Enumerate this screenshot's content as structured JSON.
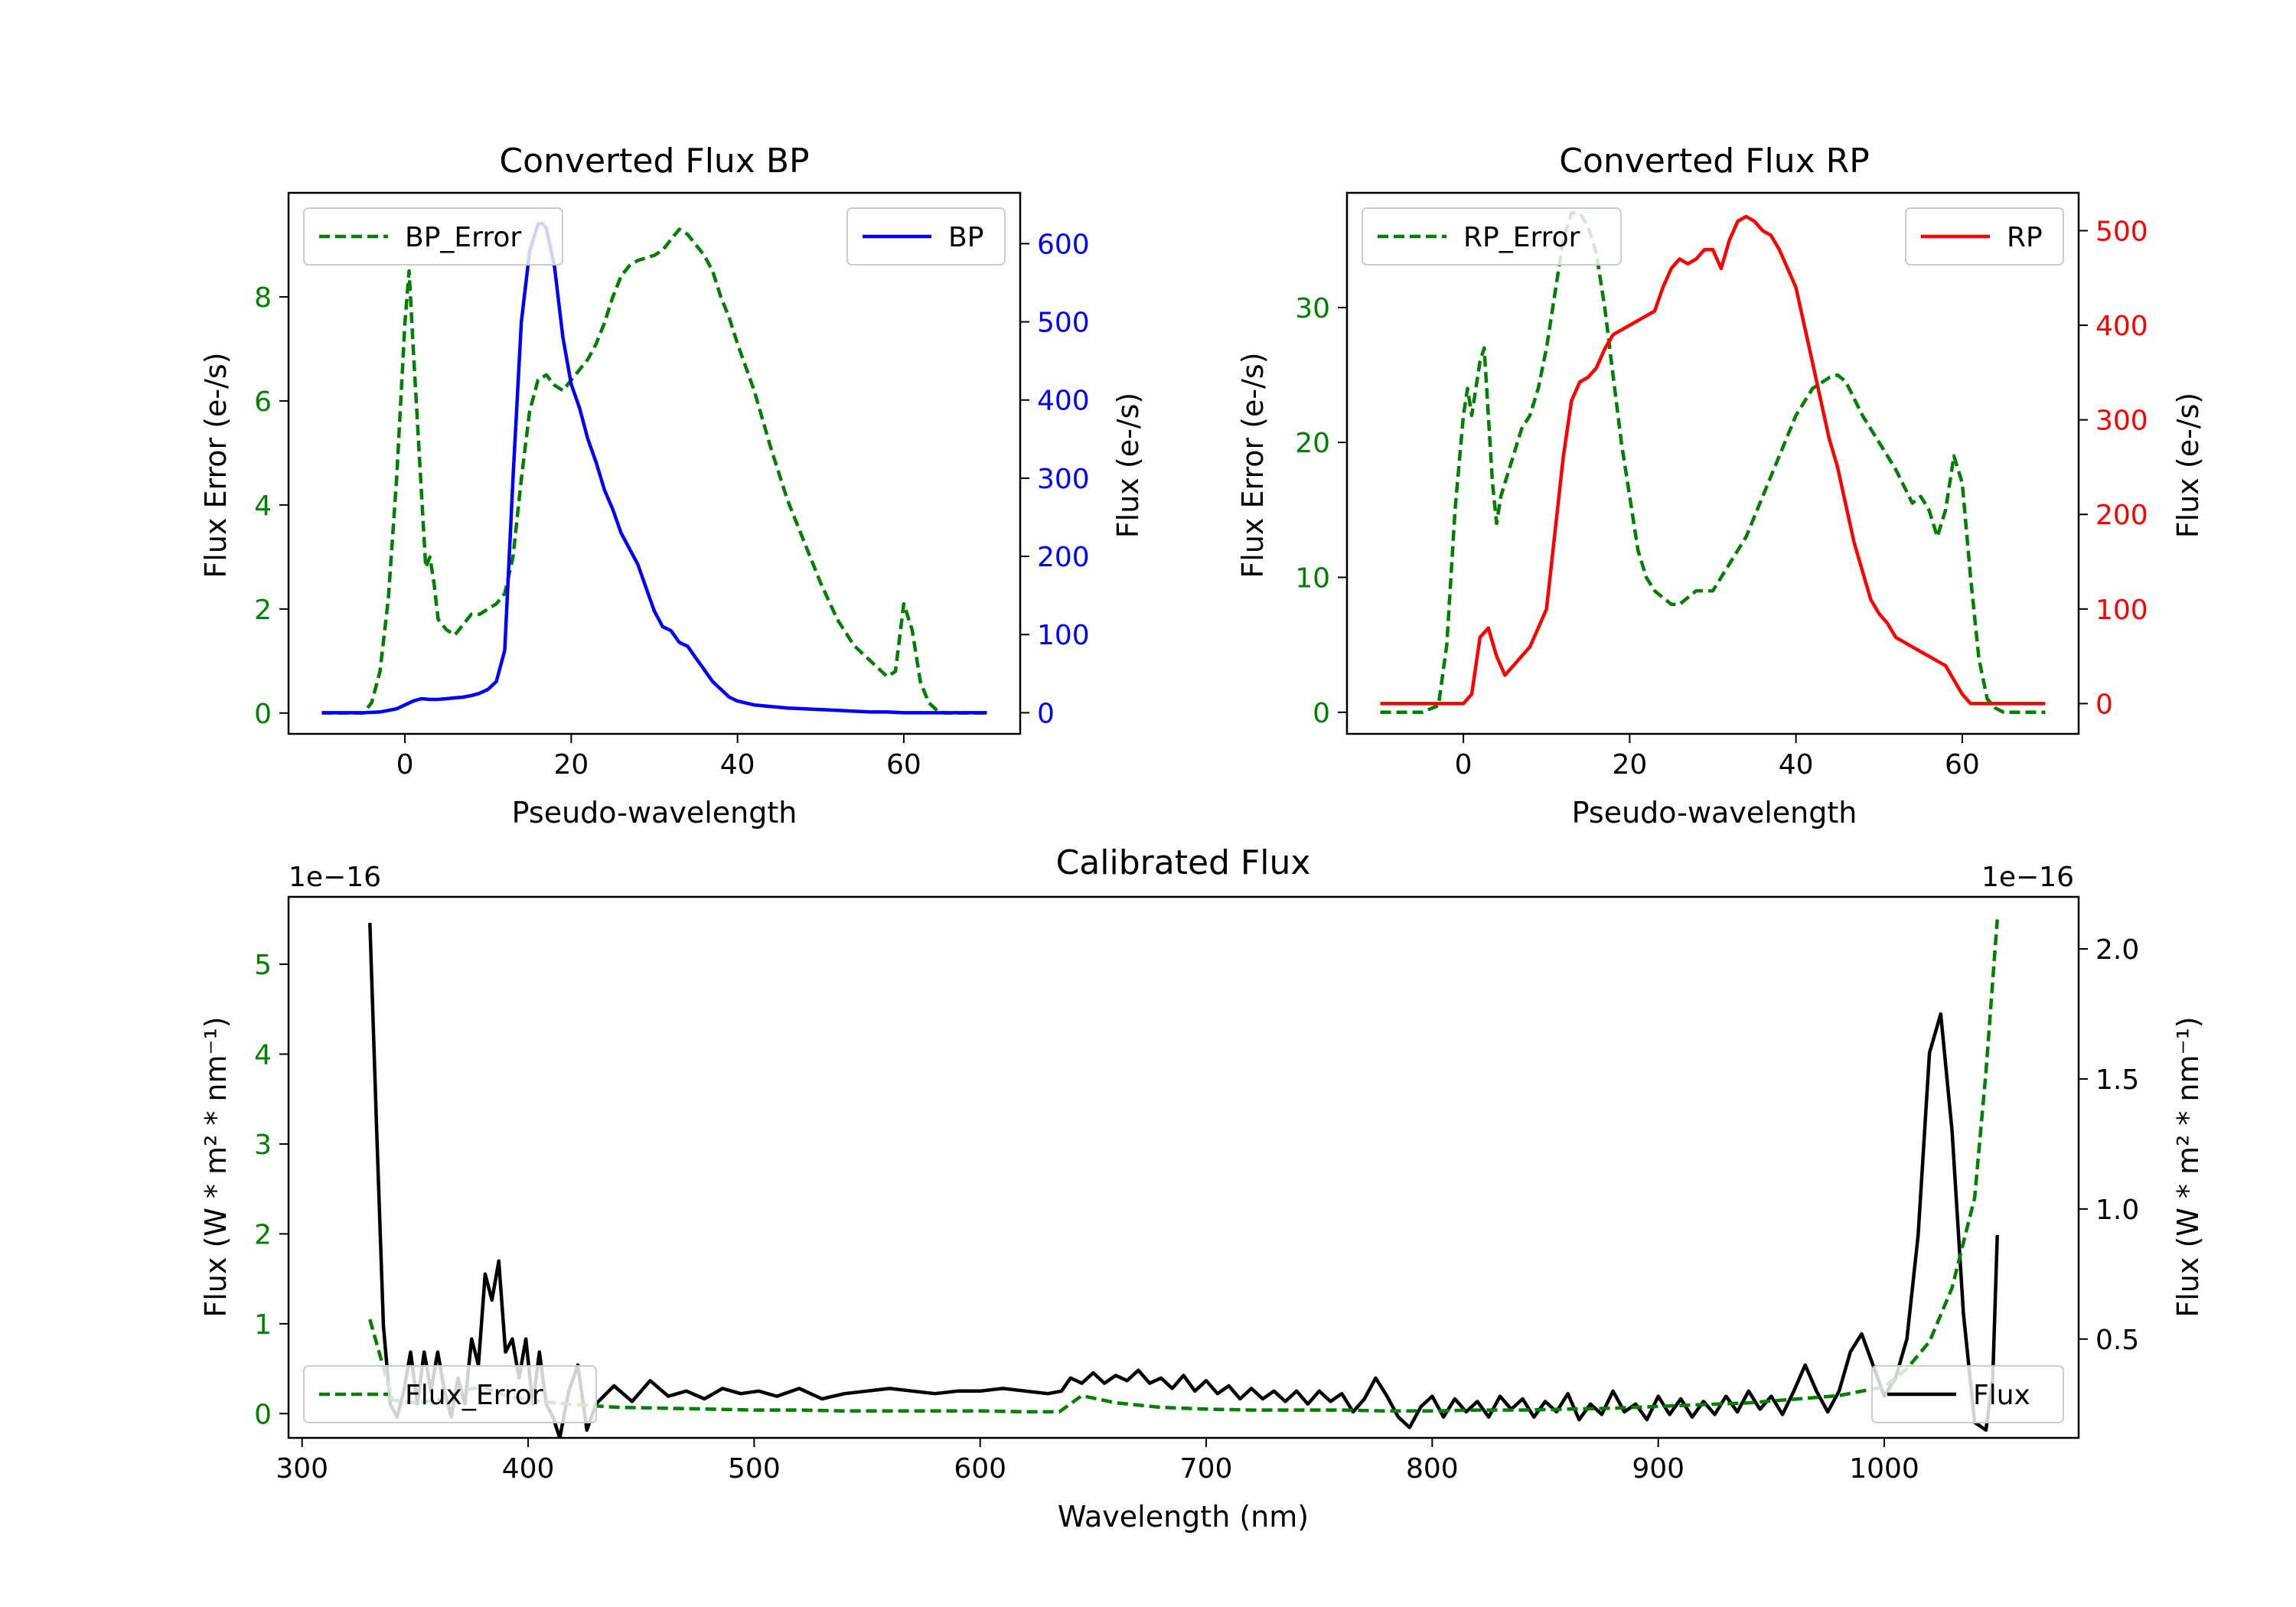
{
  "figure": {
    "background": "#ffffff",
    "axes_color": "#000000"
  },
  "chart_data": [
    {
      "id": "bp",
      "type": "line",
      "title": "Converted Flux BP",
      "xlabel": "Pseudo-wavelength",
      "xlim": [
        -14,
        74
      ],
      "xticks": [
        0,
        20,
        40,
        60
      ],
      "left_axis": {
        "label": "Flux Error (e-/s)",
        "color": "#008000",
        "ylim": [
          -0.4,
          10.0
        ],
        "ticks": [
          0,
          2,
          4,
          6,
          8
        ]
      },
      "right_axis": {
        "label": "Flux (e-/s)",
        "color": "#0000ff",
        "ylim": [
          -27,
          665
        ],
        "ticks": [
          0,
          100,
          200,
          300,
          400,
          500,
          600
        ]
      },
      "legend_left": "top-left",
      "legend_right": "top-right",
      "series": [
        {
          "name": "BP_Error",
          "axis": "left",
          "style": "dashed",
          "color": "#008000",
          "x": [
            -10,
            -5,
            -4,
            -3,
            -2,
            -1,
            0,
            0.5,
            1,
            2,
            2.5,
            3,
            3.5,
            4,
            5,
            6,
            7,
            8,
            9,
            10,
            11,
            12,
            13,
            14,
            15,
            16,
            17,
            18,
            19,
            20,
            21,
            22,
            23,
            24,
            25,
            26,
            27,
            28,
            29,
            30,
            31,
            32,
            33,
            34,
            35,
            36,
            37,
            38,
            39,
            40,
            42,
            44,
            46,
            48,
            50,
            52,
            54,
            56,
            58,
            59,
            60,
            61,
            62,
            63,
            64,
            65,
            70
          ],
          "y": [
            0,
            0,
            0.2,
            0.8,
            2.2,
            4.5,
            7.5,
            8.5,
            7.0,
            4.2,
            2.8,
            3.0,
            2.5,
            1.8,
            1.6,
            1.5,
            1.7,
            1.9,
            1.9,
            2.0,
            2.1,
            2.3,
            3.0,
            4.5,
            5.8,
            6.4,
            6.5,
            6.3,
            6.2,
            6.4,
            6.6,
            6.8,
            7.1,
            7.5,
            8.0,
            8.4,
            8.6,
            8.7,
            8.75,
            8.8,
            8.9,
            9.1,
            9.3,
            9.2,
            9.0,
            8.8,
            8.5,
            8.0,
            7.6,
            7.1,
            6.2,
            5.1,
            4.1,
            3.3,
            2.5,
            1.8,
            1.3,
            1.0,
            0.7,
            0.8,
            2.1,
            1.6,
            0.6,
            0.2,
            0.05,
            0,
            0
          ]
        },
        {
          "name": "BP",
          "axis": "right",
          "style": "solid",
          "color": "#0000ff",
          "x": [
            -10,
            -5,
            -3,
            -1,
            0,
            1,
            2,
            3,
            4,
            5,
            6,
            7,
            8,
            9,
            10,
            11,
            12,
            13,
            14,
            15,
            16,
            16.5,
            17,
            18,
            19,
            20,
            21,
            22,
            23,
            24,
            25,
            26,
            27,
            28,
            29,
            30,
            31,
            32,
            33,
            34,
            35,
            36,
            37,
            38,
            39,
            40,
            42,
            44,
            46,
            48,
            50,
            52,
            54,
            56,
            58,
            60,
            62,
            64,
            66,
            70
          ],
          "y": [
            0,
            0,
            1,
            5,
            10,
            15,
            18,
            17,
            17,
            18,
            19,
            20,
            22,
            25,
            30,
            40,
            80,
            300,
            500,
            590,
            625,
            626,
            620,
            570,
            480,
            420,
            390,
            350,
            320,
            285,
            260,
            230,
            210,
            190,
            160,
            130,
            110,
            105,
            90,
            85,
            70,
            55,
            40,
            30,
            20,
            15,
            10,
            8,
            6,
            5,
            4,
            3,
            2,
            1,
            1,
            0,
            0,
            0,
            0,
            0
          ]
        }
      ]
    },
    {
      "id": "rp",
      "type": "line",
      "title": "Converted Flux RP",
      "xlabel": "Pseudo-wavelength",
      "xlim": [
        -14,
        74
      ],
      "xticks": [
        0,
        20,
        40,
        60
      ],
      "left_axis": {
        "label": "Flux Error (e-/s)",
        "color": "#008000",
        "ylim": [
          -1.6,
          38.5
        ],
        "ticks": [
          0,
          10,
          20,
          30
        ]
      },
      "right_axis": {
        "label": "Flux (e-/s)",
        "color": "#ff0000",
        "ylim": [
          -32,
          540
        ],
        "ticks": [
          0,
          100,
          200,
          300,
          400,
          500
        ]
      },
      "legend_left": "top-left",
      "legend_right": "top-right",
      "series": [
        {
          "name": "RP_Error",
          "axis": "left",
          "style": "dashed",
          "color": "#008000",
          "x": [
            -10,
            -5,
            -3,
            -2,
            -1,
            0,
            0.5,
            1,
            1.5,
            2,
            2.5,
            3,
            3.5,
            4,
            4.5,
            5,
            6,
            7,
            8,
            9,
            10,
            11,
            12,
            13,
            14,
            15,
            16,
            17,
            18,
            19,
            20,
            21,
            22,
            23,
            24,
            25,
            26,
            27,
            28,
            29,
            30,
            32,
            34,
            36,
            38,
            40,
            42,
            44,
            45,
            46,
            48,
            50,
            52,
            54,
            55,
            56,
            57,
            58,
            59,
            60,
            61,
            62,
            63,
            64,
            65,
            70
          ],
          "y": [
            0,
            0,
            0.5,
            5,
            15,
            22,
            24,
            22,
            24,
            26,
            27,
            22,
            17,
            14,
            16,
            17,
            19,
            21,
            22,
            24,
            27,
            31,
            35,
            37,
            37,
            36,
            34,
            30,
            25,
            20,
            16,
            12,
            10,
            9,
            8.5,
            8,
            8,
            8.5,
            9,
            9,
            9,
            11,
            13,
            16,
            19,
            22,
            24,
            24.8,
            25,
            24.5,
            22,
            20,
            18,
            15.5,
            16,
            15,
            13,
            15,
            19,
            17,
            10,
            4,
            1,
            0.3,
            0,
            0
          ]
        },
        {
          "name": "RP",
          "axis": "right",
          "style": "solid",
          "color": "#ff0000",
          "x": [
            -10,
            -5,
            -3,
            -2,
            -1,
            0,
            1,
            2,
            3,
            4,
            5,
            6,
            7,
            8,
            9,
            10,
            11,
            12,
            13,
            14,
            15,
            16,
            17,
            18,
            19,
            20,
            21,
            22,
            23,
            24,
            25,
            26,
            27,
            28,
            29,
            30,
            31,
            32,
            33,
            34,
            35,
            36,
            37,
            38,
            39,
            40,
            41,
            42,
            43,
            44,
            45,
            46,
            47,
            48,
            49,
            50,
            51,
            52,
            53,
            54,
            55,
            56,
            57,
            58,
            59,
            60,
            61,
            62,
            63,
            64,
            65,
            70
          ],
          "y": [
            0,
            0,
            0,
            0,
            0,
            0,
            10,
            70,
            80,
            50,
            30,
            40,
            50,
            60,
            80,
            100,
            180,
            260,
            320,
            340,
            345,
            355,
            375,
            390,
            395,
            400,
            405,
            410,
            415,
            440,
            460,
            470,
            465,
            470,
            480,
            480,
            460,
            490,
            510,
            515,
            510,
            500,
            495,
            480,
            460,
            440,
            400,
            360,
            320,
            280,
            250,
            210,
            170,
            140,
            110,
            95,
            85,
            70,
            65,
            60,
            55,
            50,
            45,
            40,
            25,
            10,
            0,
            0,
            0,
            0,
            0,
            0
          ]
        }
      ]
    },
    {
      "id": "calibrated",
      "type": "line",
      "title": "Calibrated Flux",
      "xlabel": "Wavelength (nm)",
      "xlim": [
        294,
        1086
      ],
      "xticks": [
        300,
        400,
        500,
        600,
        700,
        800,
        900,
        1000
      ],
      "left_axis": {
        "label": "Flux (W * m² * nm⁻¹)",
        "color": "#008000",
        "ylim": [
          -0.27,
          5.75
        ],
        "ticks": [
          0,
          1,
          2,
          3,
          4,
          5
        ],
        "offset": "1e−16"
      },
      "right_axis": {
        "label": "Flux (W * m² * nm⁻¹)",
        "color": "#000000",
        "ylim": [
          0.12,
          2.2
        ],
        "ticks": [
          0.5,
          1.0,
          1.5,
          2.0
        ],
        "tick_labels": [
          "0.5",
          "1.0",
          "1.5",
          "2.0"
        ],
        "offset": "1e−16"
      },
      "legend_left": "bottom-left",
      "legend_right": "bottom-right",
      "series": [
        {
          "name": "Flux",
          "axis": "right",
          "style": "solid",
          "color": "#000000",
          "x": [
            330,
            333,
            336,
            339,
            342,
            345,
            348,
            351,
            354,
            357,
            360,
            363,
            366,
            369,
            372,
            375,
            378,
            381,
            384,
            387,
            390,
            393,
            396,
            399,
            402,
            405,
            408,
            411,
            414,
            418,
            422,
            426,
            430,
            438,
            446,
            454,
            462,
            470,
            478,
            486,
            494,
            502,
            510,
            520,
            530,
            540,
            550,
            560,
            570,
            580,
            590,
            600,
            610,
            620,
            630,
            636,
            640,
            645,
            650,
            655,
            660,
            665,
            670,
            675,
            680,
            685,
            690,
            695,
            700,
            705,
            710,
            715,
            720,
            725,
            730,
            735,
            740,
            745,
            750,
            755,
            760,
            765,
            770,
            775,
            780,
            785,
            790,
            795,
            800,
            805,
            810,
            815,
            820,
            825,
            830,
            835,
            840,
            845,
            850,
            855,
            860,
            865,
            870,
            875,
            880,
            885,
            890,
            895,
            900,
            905,
            910,
            915,
            920,
            925,
            930,
            935,
            940,
            945,
            950,
            955,
            960,
            965,
            970,
            975,
            980,
            985,
            990,
            995,
            1000,
            1005,
            1010,
            1015,
            1020,
            1025,
            1030,
            1035,
            1040,
            1045,
            1048,
            1050
          ],
          "y": [
            2.1,
            1.3,
            0.55,
            0.25,
            0.2,
            0.3,
            0.45,
            0.25,
            0.45,
            0.3,
            0.45,
            0.3,
            0.2,
            0.35,
            0.25,
            0.5,
            0.4,
            0.75,
            0.65,
            0.8,
            0.45,
            0.5,
            0.35,
            0.5,
            0.25,
            0.45,
            0.25,
            0.2,
            0.12,
            0.3,
            0.4,
            0.15,
            0.25,
            0.32,
            0.26,
            0.34,
            0.28,
            0.3,
            0.27,
            0.31,
            0.29,
            0.3,
            0.28,
            0.31,
            0.27,
            0.29,
            0.3,
            0.31,
            0.3,
            0.29,
            0.3,
            0.3,
            0.31,
            0.3,
            0.29,
            0.3,
            0.35,
            0.33,
            0.37,
            0.33,
            0.36,
            0.34,
            0.38,
            0.33,
            0.35,
            0.31,
            0.36,
            0.3,
            0.34,
            0.29,
            0.32,
            0.27,
            0.31,
            0.27,
            0.3,
            0.26,
            0.3,
            0.25,
            0.3,
            0.26,
            0.29,
            0.22,
            0.27,
            0.35,
            0.28,
            0.2,
            0.16,
            0.24,
            0.28,
            0.2,
            0.27,
            0.22,
            0.26,
            0.2,
            0.28,
            0.23,
            0.27,
            0.2,
            0.26,
            0.22,
            0.29,
            0.19,
            0.25,
            0.21,
            0.3,
            0.22,
            0.25,
            0.19,
            0.28,
            0.21,
            0.27,
            0.2,
            0.26,
            0.21,
            0.28,
            0.22,
            0.3,
            0.23,
            0.28,
            0.21,
            0.3,
            0.4,
            0.3,
            0.22,
            0.3,
            0.45,
            0.52,
            0.4,
            0.28,
            0.35,
            0.5,
            0.9,
            1.6,
            1.75,
            1.3,
            0.6,
            0.18,
            0.15,
            0.35,
            0.9
          ]
        },
        {
          "name": "Flux_Error",
          "axis": "left",
          "style": "dashed",
          "color": "#008000",
          "x": [
            330,
            340,
            350,
            360,
            370,
            380,
            390,
            400,
            420,
            440,
            460,
            480,
            500,
            520,
            540,
            560,
            580,
            600,
            620,
            635,
            645,
            660,
            680,
            700,
            720,
            740,
            760,
            780,
            800,
            820,
            840,
            860,
            880,
            900,
            920,
            940,
            960,
            980,
            990,
            1000,
            1010,
            1020,
            1030,
            1040,
            1045,
            1050
          ],
          "y": [
            1.05,
            0.15,
            0.12,
            0.15,
            0.25,
            0.3,
            0.2,
            0.15,
            0.1,
            0.07,
            0.06,
            0.05,
            0.04,
            0.04,
            0.03,
            0.03,
            0.03,
            0.03,
            0.02,
            0.02,
            0.2,
            0.12,
            0.07,
            0.05,
            0.04,
            0.04,
            0.04,
            0.03,
            0.03,
            0.04,
            0.04,
            0.05,
            0.06,
            0.08,
            0.1,
            0.12,
            0.16,
            0.2,
            0.25,
            0.3,
            0.5,
            0.8,
            1.4,
            2.4,
            3.8,
            5.5
          ]
        }
      ]
    }
  ]
}
